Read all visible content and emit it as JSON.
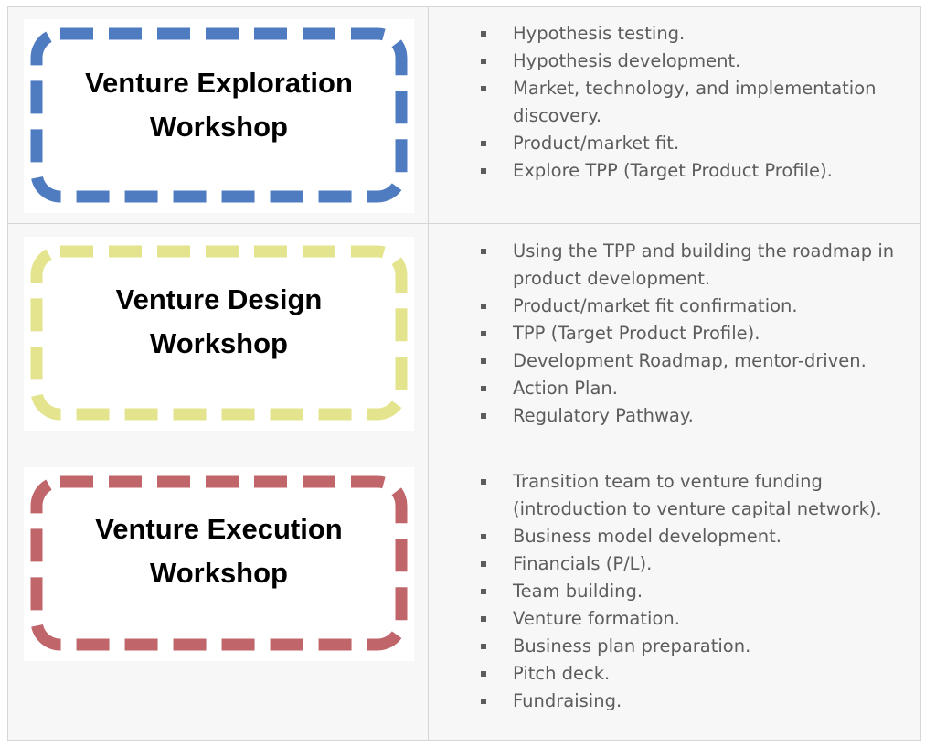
{
  "rows": [
    {
      "title_line1": "Venture Exploration",
      "title_line2": "Workshop",
      "border_color": "#4f7cc0",
      "bullets": [
        "Hypothesis testing.",
        "Hypothesis development.",
        "Market, technology, and implementation discovery.",
        "Product/market fit.",
        "Explore TPP (Target Product Profile)."
      ]
    },
    {
      "title_line1": "Venture Design",
      "title_line2": "Workshop",
      "border_color": "#e4e48f",
      "bullets": [
        "Using the TPP and building the roadmap in product development.",
        "Product/market fit confirmation.",
        "TPP (Target Product Profile).",
        "Development Roadmap, mentor-driven.",
        "Action Plan.",
        "Regulatory Pathway."
      ]
    },
    {
      "title_line1": "Venture Execution",
      "title_line2": "Workshop",
      "border_color": "#c0666a",
      "bullets": [
        "Transition team to venture funding (introduction to venture capital network).",
        "Business model development.",
        "Financials (P/L).",
        "Team building.",
        "Venture formation.",
        "Business plan preparation.",
        "Pitch deck.",
        "Fundraising."
      ]
    }
  ]
}
